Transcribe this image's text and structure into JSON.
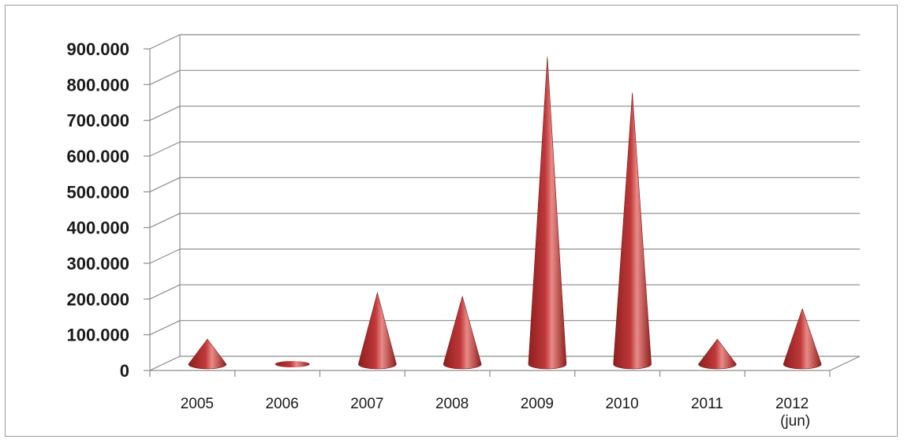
{
  "chart_data": {
    "type": "bar",
    "mark": "cone",
    "categories": [
      "2005",
      "2006",
      "2007",
      "2008",
      "2009",
      "2010",
      "2011",
      "2012 (jun)"
    ],
    "category_lines": [
      [
        "2005"
      ],
      [
        "2006"
      ],
      [
        "2007"
      ],
      [
        "2008"
      ],
      [
        "2009"
      ],
      [
        "2010"
      ],
      [
        "2011"
      ],
      [
        "2012",
        "(jun)"
      ]
    ],
    "values": [
      70000,
      2000,
      200000,
      190000,
      860000,
      760000,
      70000,
      155000
    ],
    "ylim": [
      0,
      900000
    ],
    "yticks": [
      0,
      100000,
      200000,
      300000,
      400000,
      500000,
      600000,
      700000,
      800000,
      900000
    ],
    "ytick_labels": [
      "0",
      "100.000",
      "200.000",
      "300.000",
      "400.000",
      "500.000",
      "600.000",
      "700.000",
      "800.000",
      "900.000"
    ],
    "title": "",
    "xlabel": "",
    "ylabel": "",
    "grid": true,
    "legend": "none",
    "colors": {
      "cone_dark": "#8e1f1e",
      "cone_mid": "#c0383a",
      "cone_light": "#e88a86",
      "gridline": "#8c8c8c",
      "frame": "#9a9a9a"
    }
  }
}
